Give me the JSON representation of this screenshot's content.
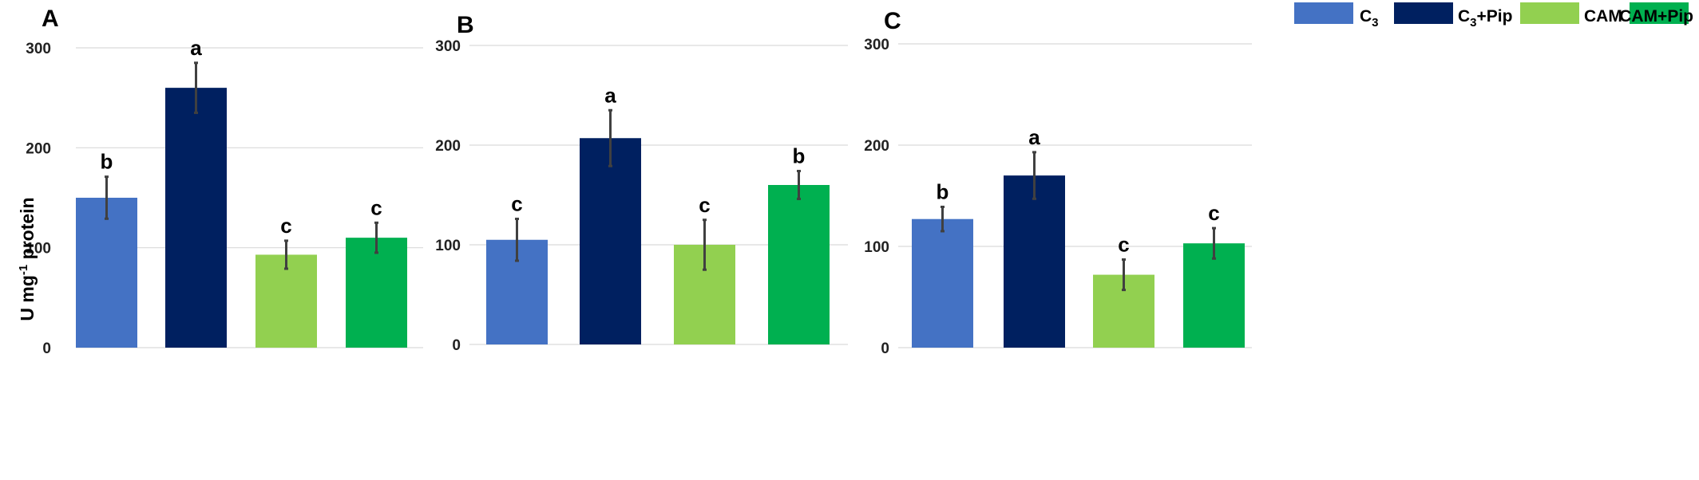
{
  "legend": {
    "items": [
      {
        "base": "C",
        "sub": "3",
        "rest": "",
        "color": "#4472C4"
      },
      {
        "base": "C",
        "sub": "3",
        "rest": "+Pip",
        "color": "#002060"
      },
      {
        "base": "CAM",
        "sub": "",
        "rest": "",
        "color": "#92D050"
      },
      {
        "base": "CAM+Pip",
        "sub": "",
        "rest": "",
        "color": "#00B050"
      }
    ]
  },
  "ylabel": {
    "pre": "U mg",
    "sup": "-1",
    "post": " protein"
  },
  "chart_data": [
    {
      "type": "bar",
      "panel": "A",
      "categories": [
        "C3",
        "C3+Pip",
        "CAM",
        "CAM+Pip"
      ],
      "values": [
        150,
        260,
        93,
        110
      ],
      "errors": [
        21,
        25,
        14,
        15
      ],
      "letters": [
        "b",
        "a",
        "c",
        "c"
      ],
      "colors": [
        "#4472C4",
        "#002060",
        "#92D050",
        "#00B050"
      ],
      "yticks": [
        0,
        100,
        200,
        300
      ],
      "ylim": [
        0,
        300
      ],
      "ylabel": "U mg-1 protein",
      "grid": true
    },
    {
      "type": "bar",
      "panel": "B",
      "categories": [
        "C3",
        "C3+Pip",
        "CAM",
        "CAM+Pip"
      ],
      "values": [
        105,
        207,
        100,
        160
      ],
      "errors": [
        21,
        28,
        25,
        14
      ],
      "letters": [
        "c",
        "a",
        "c",
        "b"
      ],
      "colors": [
        "#4472C4",
        "#002060",
        "#92D050",
        "#00B050"
      ],
      "yticks": [
        0,
        100,
        200,
        300
      ],
      "ylim": [
        0,
        300
      ],
      "grid": true
    },
    {
      "type": "bar",
      "panel": "C",
      "categories": [
        "C3",
        "C3+Pip",
        "CAM",
        "CAM+Pip"
      ],
      "values": [
        127,
        170,
        72,
        103
      ],
      "errors": [
        12,
        23,
        15,
        15
      ],
      "letters": [
        "b",
        "a",
        "c",
        "c"
      ],
      "colors": [
        "#4472C4",
        "#002060",
        "#92D050",
        "#00B050"
      ],
      "yticks": [
        0,
        100,
        200,
        300
      ],
      "ylim": [
        0,
        300
      ],
      "grid": true
    }
  ]
}
